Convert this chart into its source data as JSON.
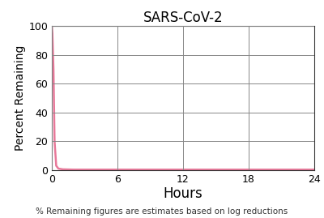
{
  "title": "SARS-CoV-2",
  "xlabel": "Hours",
  "ylabel": "Percent Remaining",
  "footer": "% Remaining figures are estimates based on log reductions",
  "xlim": [
    0,
    24
  ],
  "ylim": [
    0,
    100
  ],
  "xticks": [
    0,
    6,
    12,
    18,
    24
  ],
  "yticks": [
    0,
    20,
    40,
    60,
    80,
    100
  ],
  "line_color": "#e8799a",
  "line_width": 1.8,
  "x_data": [
    0,
    0.05,
    0.15,
    0.25,
    0.4,
    0.6,
    1.0,
    2.0,
    6.0,
    12.0,
    18.0,
    24.0
  ],
  "y_data": [
    100,
    95,
    70,
    20,
    3,
    1,
    0.5,
    0.3,
    0.3,
    0.3,
    0.3,
    0.3
  ],
  "grid_color": "#888888",
  "background_color": "#ffffff",
  "title_fontsize": 12,
  "xlabel_fontsize": 12,
  "ylabel_fontsize": 10,
  "tick_fontsize": 9,
  "footer_fontsize": 7.5
}
